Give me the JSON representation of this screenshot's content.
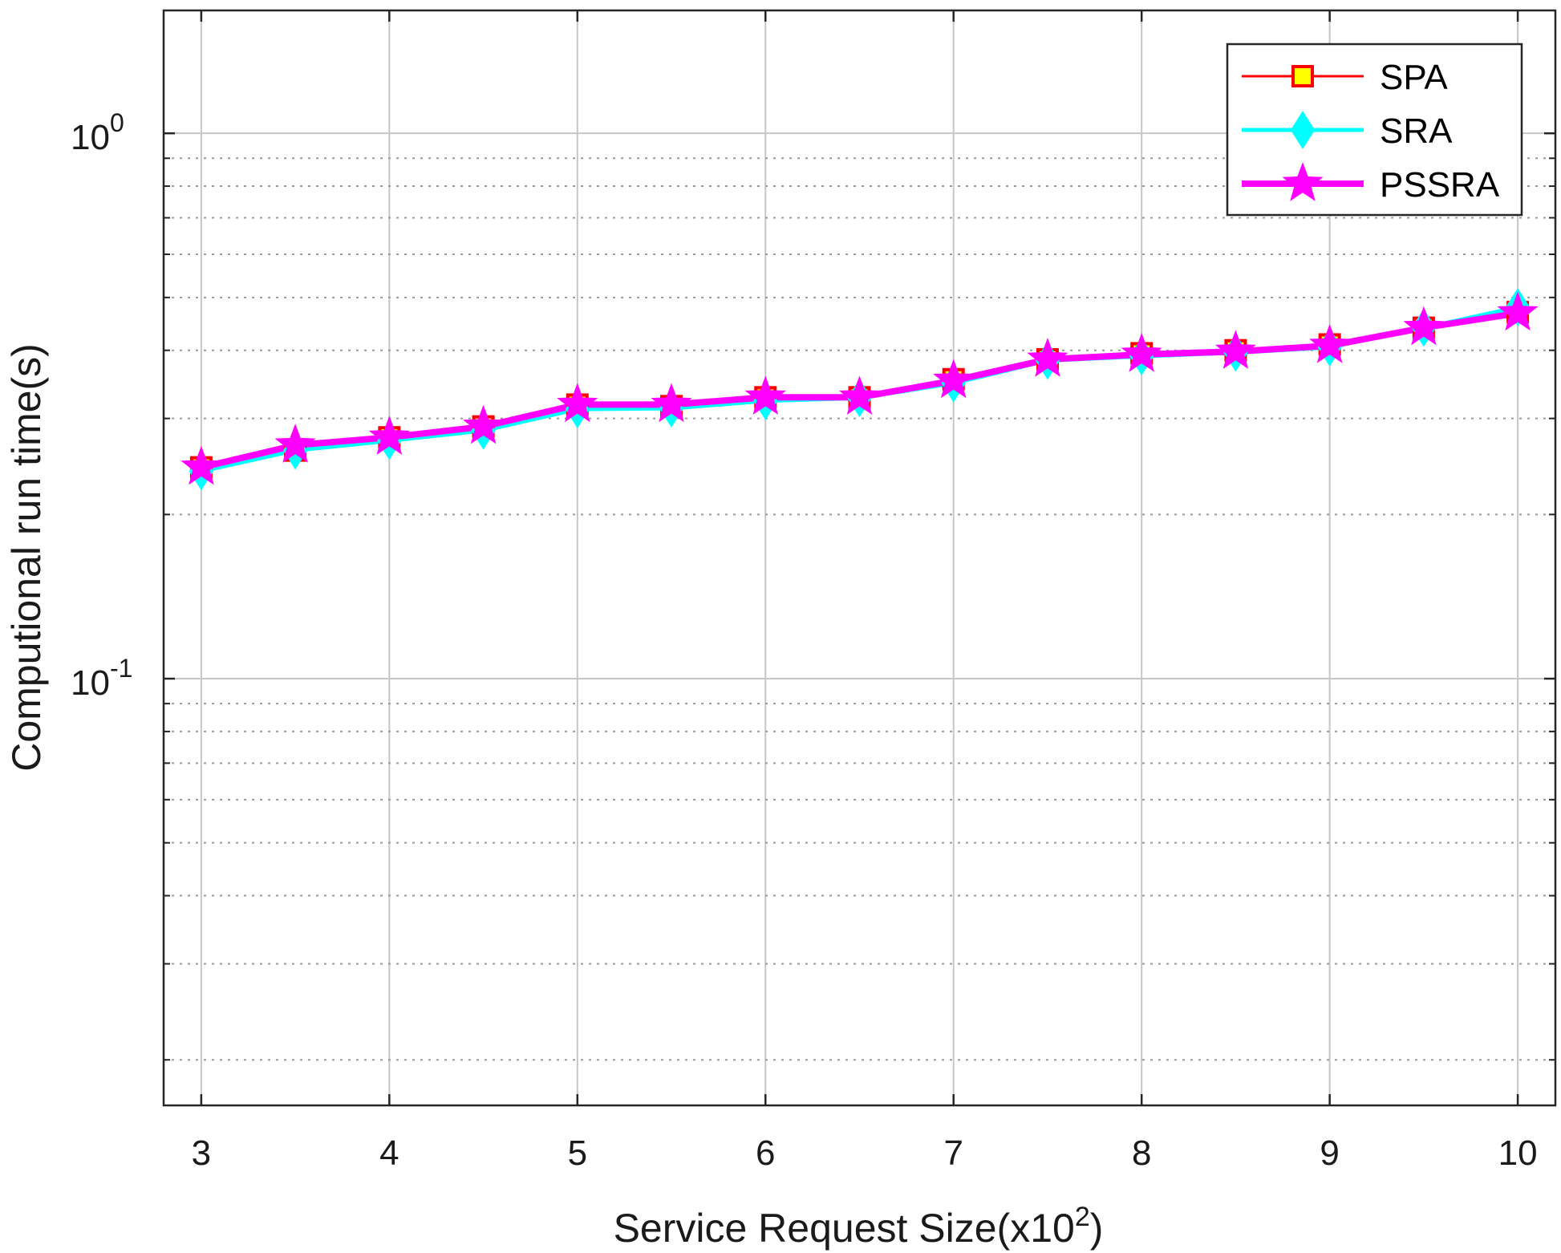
{
  "chart_data": {
    "type": "line",
    "title": "",
    "xlabel": "Service Request Size(x10",
    "xlabel_sup": "2",
    "xlabel_suffix": ")",
    "ylabel": "Computional run time(s)",
    "xlim": [
      2.8,
      10.2
    ],
    "ylim": [
      0.0165,
      1.68
    ],
    "y_scale": "log",
    "grid": true,
    "legend_position": "top-right",
    "x_ticks": [
      {
        "value": 3,
        "label": "3"
      },
      {
        "value": 4,
        "label": "4"
      },
      {
        "value": 5,
        "label": "5"
      },
      {
        "value": 6,
        "label": "6"
      },
      {
        "value": 7,
        "label": "7"
      },
      {
        "value": 8,
        "label": "8"
      },
      {
        "value": 9,
        "label": "9"
      },
      {
        "value": 10,
        "label": "10"
      }
    ],
    "y_ticks": [
      {
        "value": 0.1,
        "base": "10",
        "exp": "-1"
      },
      {
        "value": 1,
        "base": "10",
        "exp": "0"
      }
    ],
    "x": [
      3,
      3.5,
      4,
      4.5,
      5,
      5.5,
      6,
      6.5,
      7,
      7.5,
      8,
      8.5,
      9,
      9.5,
      10
    ],
    "series": [
      {
        "name": "SPA",
        "color": "#ff0000",
        "marker": "square",
        "marker_fill": "#ffff00",
        "values": [
          0.244,
          0.262,
          0.277,
          0.29,
          0.318,
          0.316,
          0.328,
          0.328,
          0.354,
          0.385,
          0.395,
          0.4,
          0.41,
          0.44,
          0.47
        ]
      },
      {
        "name": "SRA",
        "color": "#00ffff",
        "marker": "diamond",
        "marker_fill": "#00ffff",
        "values": [
          0.24,
          0.262,
          0.273,
          0.285,
          0.312,
          0.313,
          0.323,
          0.327,
          0.348,
          0.383,
          0.39,
          0.396,
          0.405,
          0.44,
          0.48
        ]
      },
      {
        "name": "PSSRA",
        "color": "#ff00ff",
        "marker": "star",
        "marker_fill": "#ff00ff",
        "values": [
          0.244,
          0.268,
          0.277,
          0.29,
          0.318,
          0.318,
          0.328,
          0.328,
          0.352,
          0.385,
          0.393,
          0.398,
          0.408,
          0.44,
          0.468
        ]
      }
    ]
  }
}
